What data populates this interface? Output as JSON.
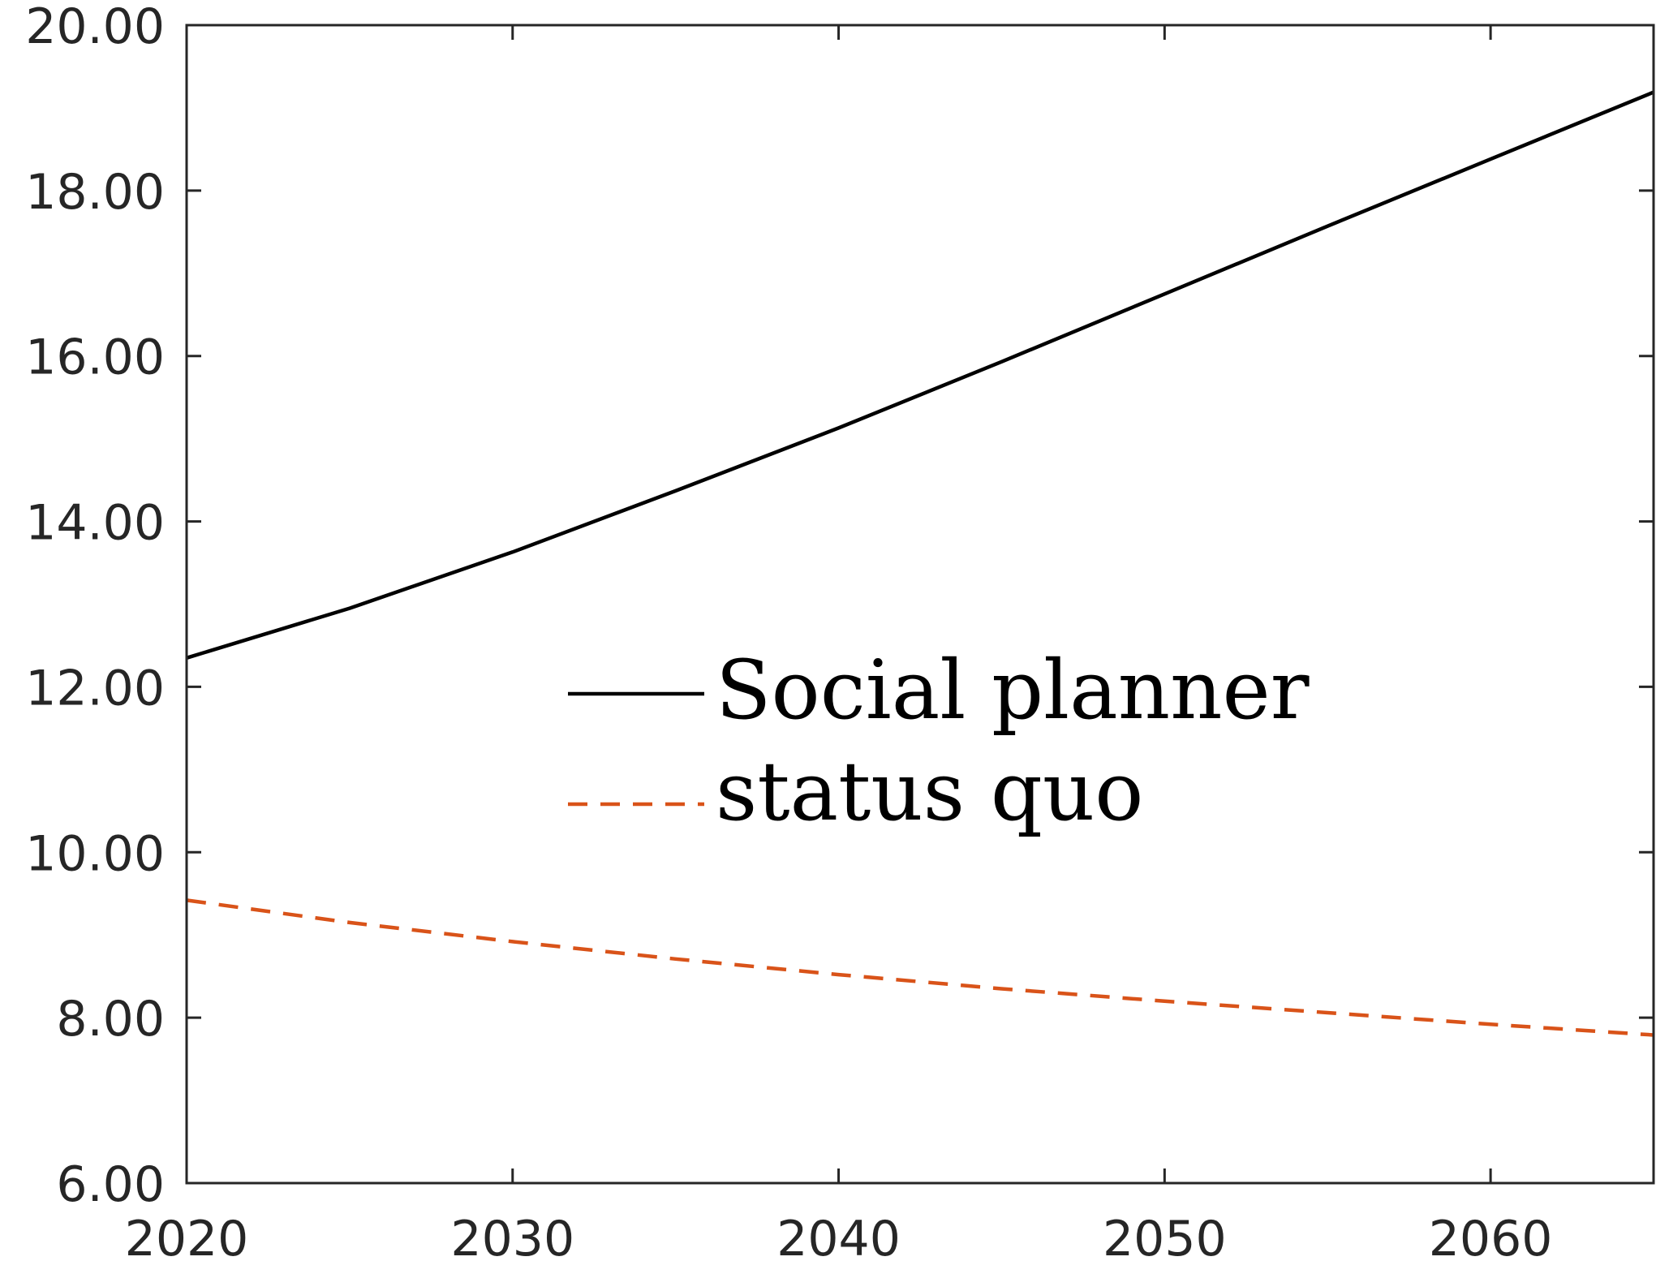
{
  "chart_data": {
    "type": "line",
    "title": "",
    "xlabel": "",
    "ylabel": "",
    "xlim": [
      2020,
      2065
    ],
    "ylim": [
      6,
      20
    ],
    "x_ticks": [
      "2020",
      "2030",
      "2040",
      "2050",
      "2060"
    ],
    "x_tick_values": [
      2020,
      2030,
      2040,
      2050,
      2060
    ],
    "y_ticks": [
      "6.00",
      "8.00",
      "10.00",
      "12.00",
      "14.00",
      "16.00",
      "18.00",
      "20.00"
    ],
    "y_tick_values": [
      6,
      8,
      10,
      12,
      14,
      16,
      18,
      20
    ],
    "grid": false,
    "legend_position": "center",
    "x": [
      2020,
      2025,
      2030,
      2035,
      2040,
      2045,
      2050,
      2055,
      2060,
      2065
    ],
    "series": [
      {
        "name": "Social planner",
        "color": "#000000",
        "style": "solid",
        "values": [
          12.35,
          12.95,
          13.63,
          14.37,
          15.13,
          15.93,
          16.75,
          17.57,
          18.38,
          19.19
        ]
      },
      {
        "name": "status quo",
        "color": "#D95319",
        "style": "dashed",
        "values": [
          9.42,
          9.15,
          8.92,
          8.71,
          8.52,
          8.35,
          8.2,
          8.06,
          7.92,
          7.79
        ]
      }
    ]
  }
}
